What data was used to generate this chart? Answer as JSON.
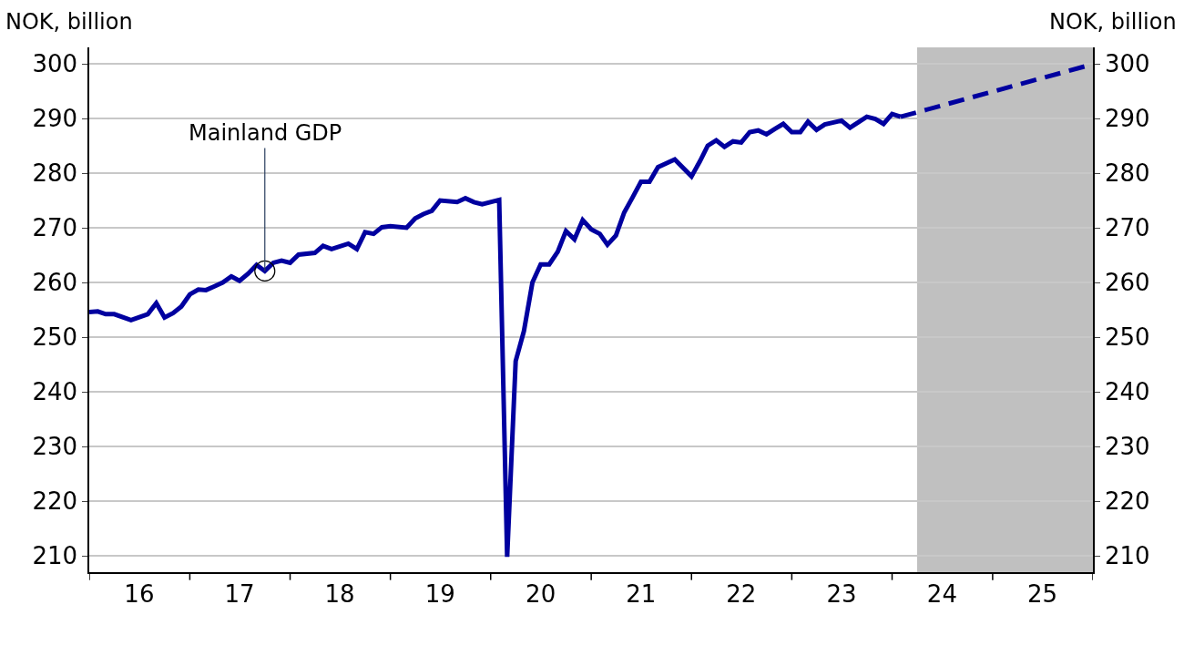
{
  "chart_data": {
    "type": "line",
    "ylabel": "NOK, billion",
    "y2label": "NOK, billion",
    "xlim": [
      "2016-01",
      "2026-01"
    ],
    "xticks": [
      {
        "value": "2016-01",
        "label": null
      },
      {
        "value": "2016-07",
        "label": "16"
      },
      {
        "value": "2017-01",
        "label": null
      },
      {
        "value": "2017-07",
        "label": "17"
      },
      {
        "value": "2018-01",
        "label": null
      },
      {
        "value": "2018-07",
        "label": "18"
      },
      {
        "value": "2019-01",
        "label": null
      },
      {
        "value": "2019-07",
        "label": "19"
      },
      {
        "value": "2020-01",
        "label": null
      },
      {
        "value": "2020-07",
        "label": "20"
      },
      {
        "value": "2021-01",
        "label": null
      },
      {
        "value": "2021-07",
        "label": "21"
      },
      {
        "value": "2022-01",
        "label": null
      },
      {
        "value": "2022-07",
        "label": "22"
      },
      {
        "value": "2023-01",
        "label": null
      },
      {
        "value": "2023-07",
        "label": "23"
      },
      {
        "value": "2024-01",
        "label": null
      },
      {
        "value": "2024-07",
        "label": "24"
      },
      {
        "value": "2025-01",
        "label": null
      },
      {
        "value": "2025-07",
        "label": "25"
      },
      {
        "value": "2026-01",
        "label": null
      }
    ],
    "ylim": [
      207,
      303
    ],
    "yticks": [
      210,
      220,
      230,
      240,
      250,
      260,
      270,
      280,
      290,
      300
    ],
    "y2lim": [
      207,
      303
    ],
    "y2ticks": [
      210,
      220,
      230,
      240,
      250,
      260,
      270,
      280,
      290,
      300
    ],
    "grid": "y",
    "legend": false,
    "bands": [
      {
        "axis": "x",
        "from": "2024-04",
        "to": "2026-01",
        "color": "#c0c0c0"
      }
    ],
    "annotations": [
      {
        "text": "Mainland GDP",
        "x": "2017-10",
        "y": 262.1
      }
    ],
    "series": [
      {
        "color": "#00009f",
        "line_style": "solid",
        "x": [
          "2016-01",
          "2016-02",
          "2016-03",
          "2016-04",
          "2016-06",
          "2016-08",
          "2016-09",
          "2016-10",
          "2016-11",
          "2016-12",
          "2017-01",
          "2017-02",
          "2017-03",
          "2017-04",
          "2017-05",
          "2017-06",
          "2017-07",
          "2017-08",
          "2017-09",
          "2017-10",
          "2017-11",
          "2017-12",
          "2018-01",
          "2018-02",
          "2018-04",
          "2018-05",
          "2018-06",
          "2018-08",
          "2018-09",
          "2018-10",
          "2018-11",
          "2018-12",
          "2019-01",
          "2019-03",
          "2019-04",
          "2019-05",
          "2019-06",
          "2019-07",
          "2019-09",
          "2019-10",
          "2019-11",
          "2019-12",
          "2020-02",
          "2020-03",
          "2020-04",
          "2020-05",
          "2020-06",
          "2020-07",
          "2020-08",
          "2020-09",
          "2020-10",
          "2020-11",
          "2020-12",
          "2021-01",
          "2021-02",
          "2021-03",
          "2021-04",
          "2021-05",
          "2021-06",
          "2021-07",
          "2021-08",
          "2021-09",
          "2021-11",
          "2022-01",
          "2022-02",
          "2022-03",
          "2022-04",
          "2022-05",
          "2022-06",
          "2022-07",
          "2022-08",
          "2022-09",
          "2022-10",
          "2022-11",
          "2022-12",
          "2023-01",
          "2023-02",
          "2023-03",
          "2023-04",
          "2023-05",
          "2023-07",
          "2023-08",
          "2023-10",
          "2023-11",
          "2023-12",
          "2024-01",
          "2024-02"
        ],
        "values": [
          254.6,
          254.7,
          254.2,
          254.2,
          253.1,
          254.2,
          256.2,
          253.6,
          254.4,
          255.6,
          257.8,
          258.7,
          258.6,
          259.3,
          260,
          261.1,
          260.3,
          261.6,
          263.2,
          262.1,
          263.6,
          264,
          263.6,
          265.1,
          265.4,
          266.7,
          266.1,
          267.1,
          266.1,
          269.2,
          268.9,
          270.1,
          270.3,
          270,
          271.7,
          272.5,
          273.1,
          275,
          274.7,
          275.4,
          274.7,
          274.3,
          275.1,
          209.8,
          245.6,
          251.1,
          260,
          263.3,
          263.3,
          265.6,
          269.4,
          267.9,
          271.4,
          269.7,
          268.9,
          266.9,
          268.6,
          272.8,
          275.6,
          278.4,
          278.4,
          281.1,
          282.5,
          279.4,
          282.2,
          285,
          286,
          284.8,
          285.8,
          285.6,
          287.5,
          287.8,
          287.1,
          288.1,
          289,
          287.5,
          287.5,
          289.4,
          287.9,
          288.9,
          289.6,
          288.3,
          290.3,
          289.9,
          289,
          290.8,
          290.3
        ]
      },
      {
        "color": "#00009f",
        "line_style": "dashed",
        "x": [
          "2024-02",
          "2025-12"
        ],
        "values": [
          290.3,
          299.5
        ]
      }
    ]
  }
}
